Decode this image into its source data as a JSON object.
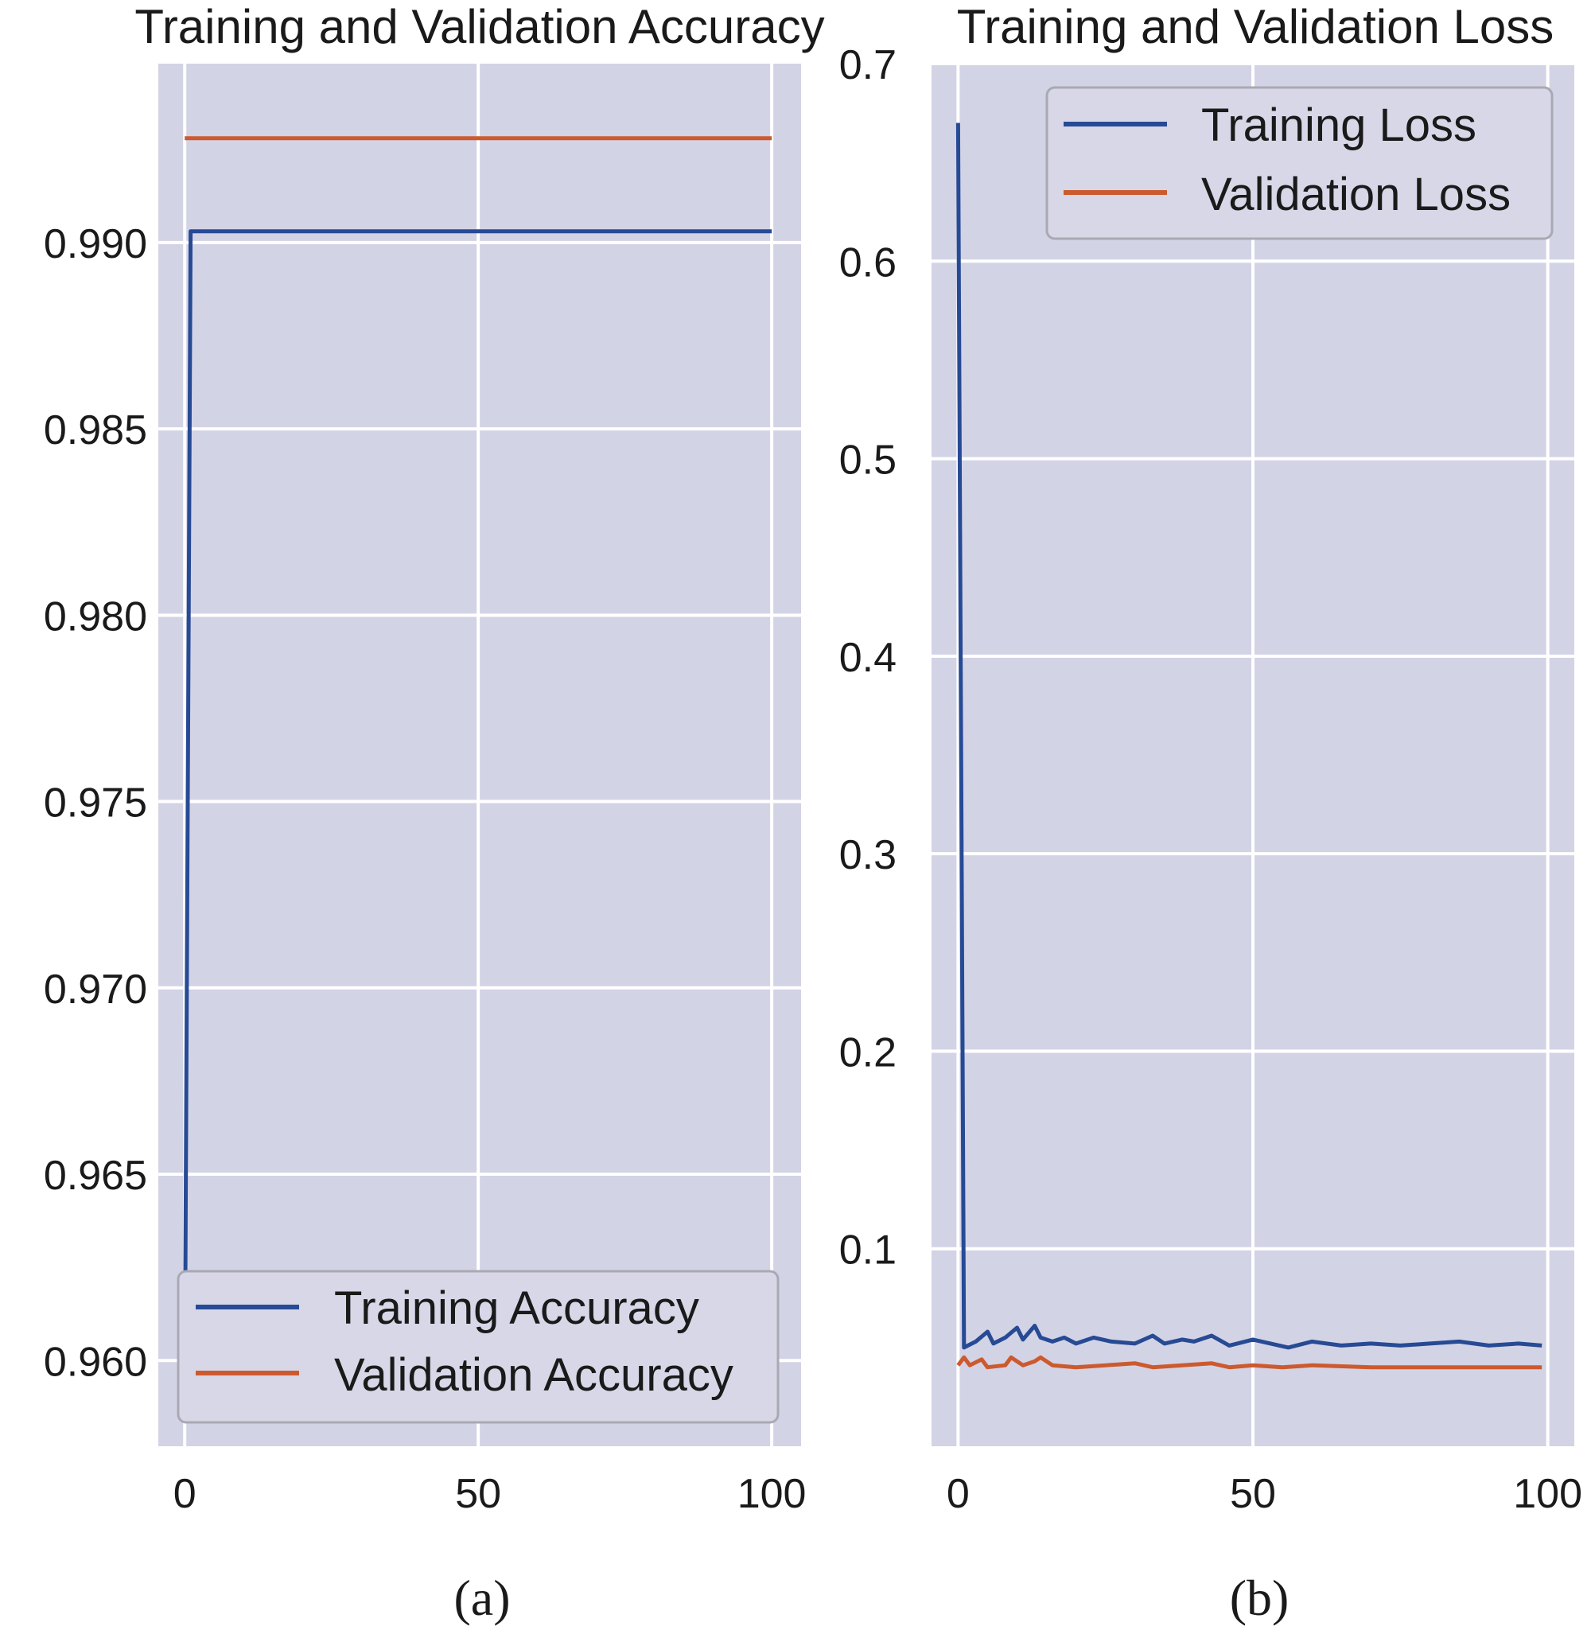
{
  "colors": {
    "panel_bg": "#d3d3e6",
    "grid": "#ffffff",
    "training": "#274a94",
    "validation": "#cc5a2e",
    "legend_bg": "#d7d7e8",
    "legend_border": "#a9a9b4"
  },
  "chart_data": [
    {
      "type": "line",
      "panel": "a",
      "title": "Training and Validation Accuracy",
      "caption": "(a)",
      "xlabel": "",
      "ylabel": "",
      "xlim": [
        -4.5,
        105
      ],
      "ylim": [
        0.9577,
        0.9948
      ],
      "grid": true,
      "legend_position": "lower-left",
      "x_ticks": [
        0,
        50,
        100
      ],
      "x_tick_labels": [
        "0",
        "50",
        "100"
      ],
      "y_ticks": [
        0.96,
        0.965,
        0.97,
        0.975,
        0.98,
        0.985,
        0.99
      ],
      "y_tick_labels": [
        "0.960",
        "0.965",
        "0.970",
        "0.975",
        "0.980",
        "0.985",
        "0.990"
      ],
      "series": [
        {
          "name": "Training Accuracy",
          "color_key": "training",
          "points": [
            [
              0,
              0.9588
            ],
            [
              1,
              0.9903
            ],
            [
              100,
              0.9903
            ]
          ]
        },
        {
          "name": "Validation Accuracy",
          "color_key": "validation",
          "points": [
            [
              0,
              0.9928
            ],
            [
              100,
              0.9928
            ]
          ]
        }
      ]
    },
    {
      "type": "line",
      "panel": "b",
      "title": "Training and Validation Loss",
      "caption": "(b)",
      "xlabel": "",
      "ylabel": "",
      "xlim": [
        -4.5,
        104.5
      ],
      "ylim": [
        0.0,
        0.7
      ],
      "grid": true,
      "legend_position": "upper-right",
      "x_ticks": [
        0,
        50,
        100
      ],
      "x_tick_labels": [
        "0",
        "50",
        "100"
      ],
      "y_ticks": [
        0.1,
        0.2,
        0.3,
        0.4,
        0.5,
        0.6,
        0.7
      ],
      "y_tick_labels": [
        "0.1",
        "0.2",
        "0.3",
        "0.4",
        "0.5",
        "0.6",
        "0.7"
      ],
      "series": [
        {
          "name": "Training Loss",
          "color_key": "training",
          "points": [
            [
              0,
              0.67
            ],
            [
              1,
              0.05
            ],
            [
              3,
              0.053
            ],
            [
              5,
              0.058
            ],
            [
              6,
              0.052
            ],
            [
              8,
              0.055
            ],
            [
              10,
              0.06
            ],
            [
              11,
              0.054
            ],
            [
              13,
              0.061
            ],
            [
              14,
              0.055
            ],
            [
              16,
              0.053
            ],
            [
              18,
              0.055
            ],
            [
              20,
              0.052
            ],
            [
              23,
              0.055
            ],
            [
              26,
              0.053
            ],
            [
              30,
              0.052
            ],
            [
              33,
              0.056
            ],
            [
              35,
              0.052
            ],
            [
              38,
              0.054
            ],
            [
              40,
              0.053
            ],
            [
              43,
              0.056
            ],
            [
              46,
              0.051
            ],
            [
              50,
              0.054
            ],
            [
              53,
              0.052
            ],
            [
              56,
              0.05
            ],
            [
              60,
              0.053
            ],
            [
              65,
              0.051
            ],
            [
              70,
              0.052
            ],
            [
              75,
              0.051
            ],
            [
              80,
              0.052
            ],
            [
              85,
              0.053
            ],
            [
              90,
              0.051
            ],
            [
              95,
              0.052
            ],
            [
              99,
              0.051
            ]
          ]
        },
        {
          "name": "Validation Loss",
          "color_key": "validation",
          "points": [
            [
              0,
              0.041
            ],
            [
              1,
              0.045
            ],
            [
              2,
              0.041
            ],
            [
              4,
              0.044
            ],
            [
              5,
              0.04
            ],
            [
              8,
              0.041
            ],
            [
              9,
              0.045
            ],
            [
              11,
              0.041
            ],
            [
              13,
              0.043
            ],
            [
              14,
              0.045
            ],
            [
              16,
              0.041
            ],
            [
              20,
              0.04
            ],
            [
              25,
              0.041
            ],
            [
              30,
              0.042
            ],
            [
              33,
              0.04
            ],
            [
              38,
              0.041
            ],
            [
              43,
              0.042
            ],
            [
              46,
              0.04
            ],
            [
              50,
              0.041
            ],
            [
              55,
              0.04
            ],
            [
              60,
              0.041
            ],
            [
              70,
              0.04
            ],
            [
              80,
              0.04
            ],
            [
              90,
              0.04
            ],
            [
              99,
              0.04
            ]
          ]
        }
      ]
    }
  ]
}
